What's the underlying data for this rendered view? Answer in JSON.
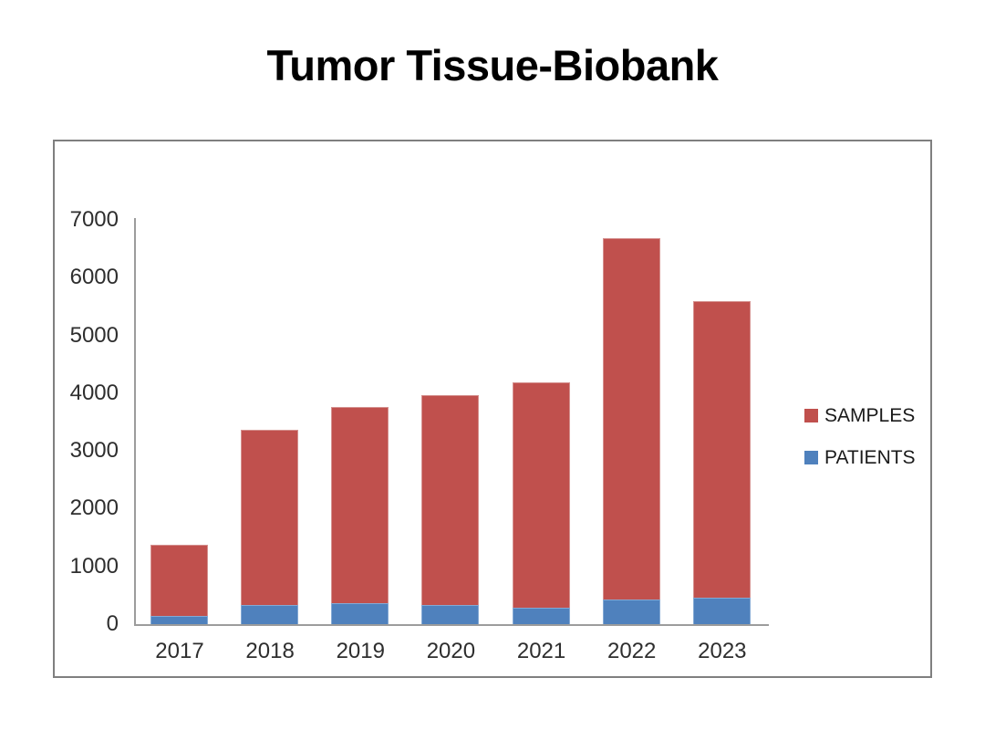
{
  "title": "Tumor Tissue-Biobank",
  "chart_data": {
    "type": "bar",
    "stacked": true,
    "title": "Tumor Tissue-Biobank",
    "categories": [
      "2017",
      "2018",
      "2019",
      "2020",
      "2021",
      "2022",
      "2023"
    ],
    "series": [
      {
        "name": "PATIENTS",
        "color": "#4F81BD",
        "values": [
          150,
          330,
          370,
          330,
          280,
          430,
          460
        ]
      },
      {
        "name": "SAMPLES",
        "color": "#C0504D",
        "values": [
          1230,
          3030,
          3390,
          3640,
          3910,
          6260,
          5130
        ]
      }
    ],
    "bar_totals": [
      1380,
      3360,
      3760,
      3970,
      4190,
      6690,
      5590
    ],
    "xlabel": "",
    "ylabel": "",
    "ylim": [
      0,
      7000
    ],
    "yticks": [
      0,
      1000,
      2000,
      3000,
      4000,
      5000,
      6000,
      7000
    ],
    "grid": false,
    "legend_position": "right",
    "legend_order": [
      "SAMPLES",
      "PATIENTS"
    ]
  },
  "legend": {
    "items": [
      {
        "label": "SAMPLES",
        "color": "#C0504D"
      },
      {
        "label": "PATIENTS",
        "color": "#4F81BD"
      }
    ]
  },
  "colors": {
    "samples": "#C0504D",
    "patients": "#4F81BD",
    "axis": "#9c9c9c",
    "frame_border": "#7f7f7f",
    "tick_text": "#2e2e2e",
    "title_text": "#000000"
  }
}
